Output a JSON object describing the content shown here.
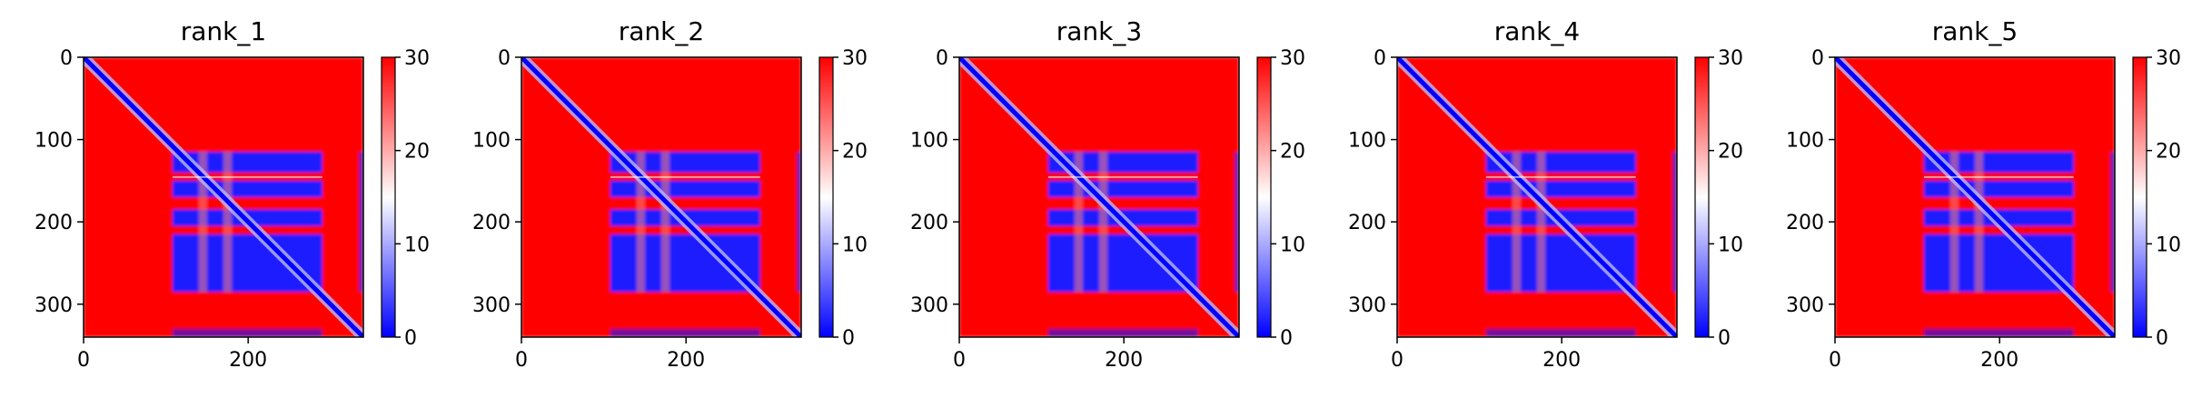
{
  "chart_data": {
    "type": "heatmap",
    "colormap": "bwr",
    "colormap_stops": [
      "#0000ff",
      "#ffffff",
      "#ff0000"
    ],
    "vmin": 0,
    "vmax": 30,
    "matrix_size": 340,
    "x_ticks": [
      0,
      200
    ],
    "y_ticks": [
      0,
      100,
      200,
      300
    ],
    "colorbar_ticks": [
      0,
      10,
      20,
      30
    ],
    "grid": false,
    "structure": {
      "low_distance_blocks": [
        [
          115,
          140
        ],
        [
          150,
          170
        ],
        [
          185,
          205
        ],
        [
          215,
          285
        ]
      ],
      "block_columns_start": 108,
      "block_columns_end": 290,
      "gap_columns": [
        [
          140,
          150
        ],
        [
          170,
          180
        ]
      ],
      "edge_band_columns": [
        335,
        340
      ],
      "bottom_band_rows": [
        330,
        340
      ]
    },
    "panels": [
      {
        "title": "rank_1"
      },
      {
        "title": "rank_2"
      },
      {
        "title": "rank_3"
      },
      {
        "title": "rank_4"
      },
      {
        "title": "rank_5"
      }
    ]
  }
}
